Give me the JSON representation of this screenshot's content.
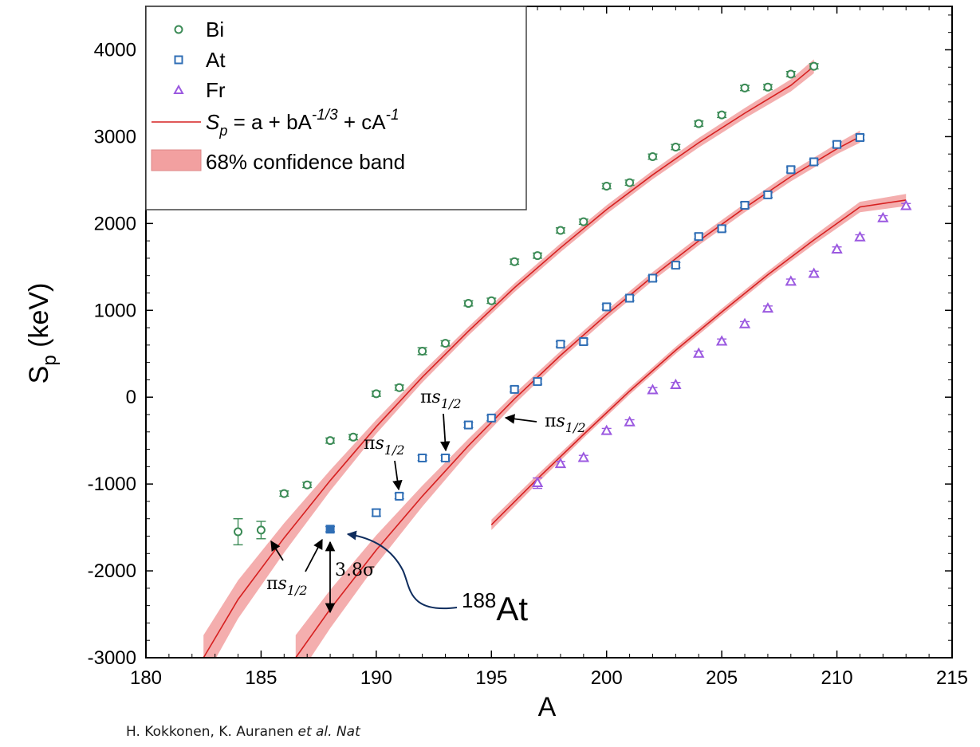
{
  "chart_data": {
    "type": "scatter",
    "xlabel": "A",
    "ylabel": "S",
    "ylabel_sub": "p",
    "ylabel_unit": " (keV)",
    "xlim": [
      180,
      215
    ],
    "ylim": [
      -3000,
      4500
    ],
    "xticks": [
      180,
      185,
      190,
      195,
      200,
      205,
      210,
      215
    ],
    "yticks": [
      -3000,
      -2000,
      -1000,
      0,
      1000,
      2000,
      3000,
      4000
    ],
    "legend_position": "top-left",
    "legend": {
      "bi": "Bi",
      "at": "At",
      "fr": "Fr",
      "fit_S": "S",
      "fit_sub": "p",
      "fit_eq": " = a + bA",
      "fit_exp1": "-1/3",
      "fit_mid": " + cA",
      "fit_exp2": "-1",
      "band": "68% confidence band"
    },
    "colors": {
      "bi": "#3a8a55",
      "at": "#2f6eb5",
      "fr": "#9b59e0",
      "fit": "#d62020",
      "band": "#f2a0a0",
      "arrow_188": "#0f2d5e"
    },
    "series": [
      {
        "name": "Bi",
        "marker": "circle",
        "x": [
          184,
          185,
          186,
          187,
          188,
          189,
          190,
          191,
          192,
          193,
          194,
          195,
          196,
          197,
          198,
          199,
          200,
          201,
          202,
          203,
          204,
          205,
          206,
          207,
          208,
          209
        ],
        "y": [
          -1550,
          -1530,
          -1110,
          -1010,
          -500,
          -460,
          40,
          110,
          530,
          620,
          1080,
          1110,
          1560,
          1630,
          1920,
          2020,
          2430,
          2470,
          2770,
          2880,
          3150,
          3250,
          3560,
          3570,
          3720,
          3810
        ],
        "err": [
          150,
          100,
          30,
          30,
          30,
          30,
          30,
          30,
          40,
          30,
          30,
          30,
          30,
          30,
          30,
          30,
          30,
          30,
          30,
          30,
          30,
          30,
          30,
          30,
          30,
          30
        ]
      },
      {
        "name": "At",
        "marker": "square",
        "x": [
          188,
          190,
          191,
          192,
          193,
          194,
          195,
          196,
          197,
          198,
          199,
          200,
          201,
          202,
          203,
          204,
          205,
          206,
          207,
          208,
          209,
          210,
          211
        ],
        "y": [
          -1520,
          -1330,
          -1140,
          -700,
          -700,
          -320,
          -240,
          90,
          180,
          610,
          640,
          1040,
          1140,
          1370,
          1520,
          1850,
          1940,
          2210,
          2330,
          2620,
          2710,
          2910,
          2990
        ],
        "err": [
          30,
          40,
          30,
          30,
          30,
          30,
          30,
          30,
          30,
          30,
          30,
          30,
          30,
          30,
          30,
          30,
          30,
          30,
          30,
          30,
          30,
          30,
          30
        ],
        "filled_index": 0
      },
      {
        "name": "Fr",
        "marker": "triangle",
        "x": [
          197,
          198,
          199,
          200,
          201,
          202,
          203,
          204,
          205,
          206,
          207,
          208,
          209,
          210,
          211,
          212,
          213
        ],
        "y": [
          -990,
          -770,
          -700,
          -390,
          -290,
          80,
          140,
          500,
          640,
          840,
          1020,
          1330,
          1420,
          1700,
          1840,
          2060,
          2200
        ],
        "err": [
          60,
          30,
          30,
          30,
          30,
          30,
          30,
          30,
          30,
          30,
          30,
          30,
          30,
          30,
          30,
          30,
          30
        ]
      }
    ],
    "fits": [
      {
        "x": [
          182.5,
          184,
          186,
          188,
          190,
          192,
          194,
          196,
          198,
          200,
          202,
          204,
          206,
          208,
          209
        ],
        "y": [
          -3000,
          -2330,
          -1620,
          -960,
          -340,
          230,
          760,
          1260,
          1720,
          2160,
          2560,
          2930,
          3270,
          3590,
          3810
        ],
        "band": [
          260,
          220,
          170,
          120,
          80,
          60,
          50,
          50,
          50,
          50,
          50,
          55,
          60,
          70,
          80
        ]
      },
      {
        "x": [
          186.5,
          188,
          190,
          192,
          194,
          196,
          198,
          200,
          202,
          204,
          206,
          208,
          210,
          211
        ],
        "y": [
          -3000,
          -2440,
          -1760,
          -1140,
          -560,
          -20,
          480,
          950,
          1390,
          1800,
          2180,
          2540,
          2860,
          3000
        ],
        "band": [
          260,
          220,
          170,
          120,
          80,
          60,
          50,
          50,
          50,
          50,
          50,
          55,
          60,
          70
        ]
      },
      {
        "x": [
          195,
          197,
          199,
          201,
          203,
          205,
          207,
          209,
          211,
          213
        ],
        "y": [
          -1470,
          -940,
          -430,
          70,
          540,
          980,
          1410,
          1810,
          2190,
          2270
        ],
        "band": [
          60,
          50,
          40,
          40,
          40,
          40,
          40,
          50,
          60,
          70
        ]
      }
    ],
    "annotations": {
      "pi": "π",
      "s": "s",
      "half": "1/2",
      "sigma_value": "3.8σ",
      "isotope_mass": "188",
      "isotope_symbol": "At"
    }
  },
  "citation": {
    "authors": "H. Kokkonen, K. Auranen ",
    "etal": "et al.",
    "journal": " Nat"
  }
}
